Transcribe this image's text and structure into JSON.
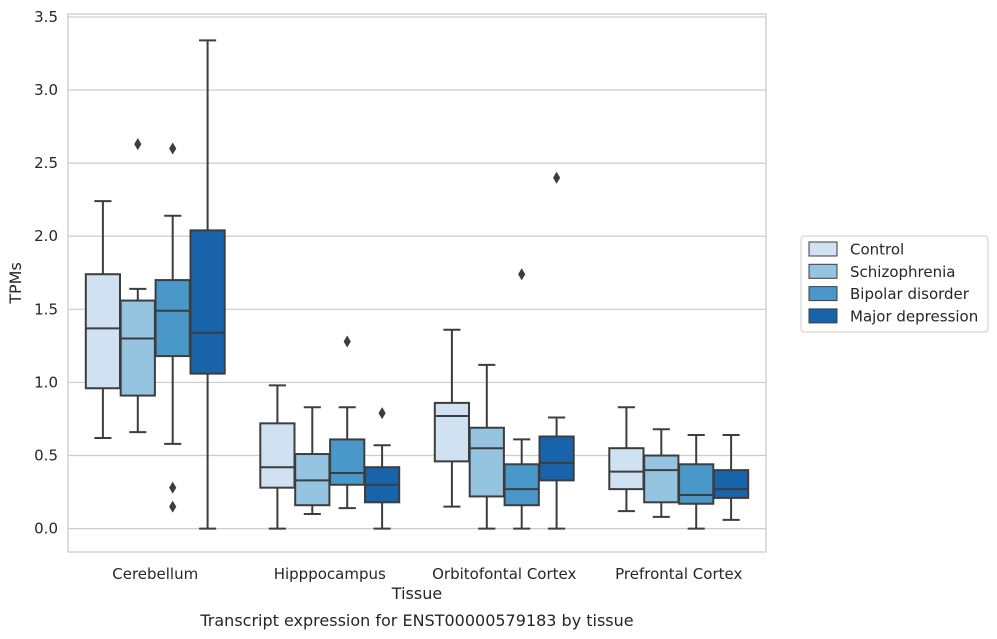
{
  "caption": "Transcript expression for ENST00000579183 by tissue",
  "chart_data": {
    "type": "box",
    "xlabel": "Tissue",
    "ylabel": "TPMs",
    "ylim": [
      -0.16,
      3.52
    ],
    "yticks": [
      0.0,
      0.5,
      1.0,
      1.5,
      2.0,
      2.5,
      3.0,
      3.5
    ],
    "ytick_labels": [
      "0.0",
      "0.5",
      "1.0",
      "1.5",
      "2.0",
      "2.5",
      "3.0",
      "3.5"
    ],
    "grid": "horizontal",
    "legend_position": "right",
    "categories": [
      "Cerebellum",
      "Hipppocampus",
      "Orbitofontal Cortex",
      "Prefrontal Cortex"
    ],
    "series": [
      {
        "name": "Control",
        "color": "#d0e1f2",
        "boxes": [
          {
            "whislo": 0.62,
            "q1": 0.96,
            "med": 1.37,
            "q3": 1.74,
            "whishi": 2.24,
            "fliers": []
          },
          {
            "whislo": 0.0,
            "q1": 0.28,
            "med": 0.42,
            "q3": 0.72,
            "whishi": 0.98,
            "fliers": []
          },
          {
            "whislo": 0.15,
            "q1": 0.46,
            "med": 0.77,
            "q3": 0.86,
            "whishi": 1.36,
            "fliers": []
          },
          {
            "whislo": 0.12,
            "q1": 0.27,
            "med": 0.39,
            "q3": 0.55,
            "whishi": 0.83,
            "fliers": []
          }
        ]
      },
      {
        "name": "Schizophrenia",
        "color": "#94c4df",
        "boxes": [
          {
            "whislo": 0.66,
            "q1": 0.91,
            "med": 1.3,
            "q3": 1.56,
            "whishi": 1.64,
            "fliers": [
              2.63
            ]
          },
          {
            "whislo": 0.1,
            "q1": 0.16,
            "med": 0.33,
            "q3": 0.51,
            "whishi": 0.83,
            "fliers": []
          },
          {
            "whislo": 0.0,
            "q1": 0.22,
            "med": 0.55,
            "q3": 0.69,
            "whishi": 1.12,
            "fliers": []
          },
          {
            "whislo": 0.08,
            "q1": 0.18,
            "med": 0.4,
            "q3": 0.5,
            "whishi": 0.68,
            "fliers": []
          }
        ]
      },
      {
        "name": "Bipolar disorder",
        "color": "#4a98c9",
        "boxes": [
          {
            "whislo": 0.58,
            "q1": 1.18,
            "med": 1.49,
            "q3": 1.7,
            "whishi": 2.14,
            "fliers": [
              2.6,
              0.28,
              0.15
            ]
          },
          {
            "whislo": 0.14,
            "q1": 0.3,
            "med": 0.38,
            "q3": 0.61,
            "whishi": 0.83,
            "fliers": [
              1.28
            ]
          },
          {
            "whislo": 0.0,
            "q1": 0.16,
            "med": 0.27,
            "q3": 0.44,
            "whishi": 0.61,
            "fliers": [
              1.74
            ]
          },
          {
            "whislo": 0.0,
            "q1": 0.17,
            "med": 0.23,
            "q3": 0.44,
            "whishi": 0.64,
            "fliers": []
          }
        ]
      },
      {
        "name": "Major depression",
        "color": "#1764ab",
        "boxes": [
          {
            "whislo": 0.0,
            "q1": 1.06,
            "med": 1.34,
            "q3": 2.04,
            "whishi": 3.34,
            "fliers": []
          },
          {
            "whislo": 0.0,
            "q1": 0.18,
            "med": 0.3,
            "q3": 0.42,
            "whishi": 0.57,
            "fliers": [
              0.79
            ]
          },
          {
            "whislo": 0.0,
            "q1": 0.33,
            "med": 0.45,
            "q3": 0.63,
            "whishi": 0.76,
            "fliers": [
              2.4
            ]
          },
          {
            "whislo": 0.06,
            "q1": 0.21,
            "med": 0.27,
            "q3": 0.4,
            "whishi": 0.64,
            "fliers": []
          }
        ]
      }
    ]
  }
}
